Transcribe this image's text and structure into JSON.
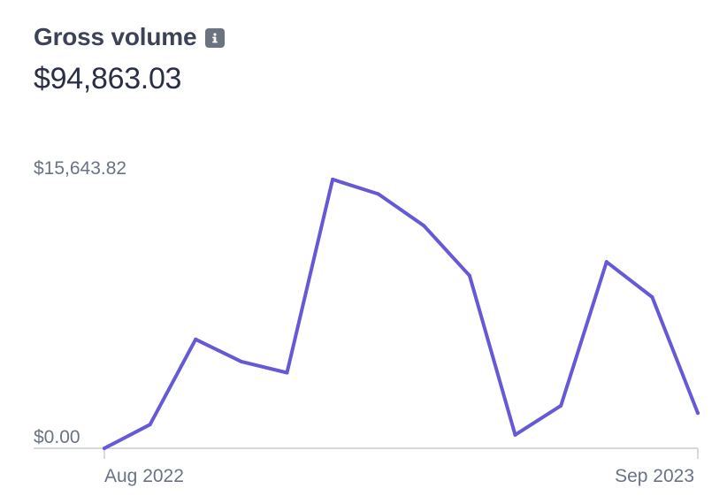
{
  "header": {
    "title": "Gross volume",
    "info_icon": "info-icon",
    "amount": "$94,863.03"
  },
  "colors": {
    "line": "#6559d8",
    "axis": "#c9ced6",
    "title": "#3c4257",
    "muted": "#6a7383"
  },
  "chart_data": {
    "type": "line",
    "x": [
      "2022-08",
      "2022-09",
      "2022-10",
      "2022-11",
      "2022-12",
      "2023-01",
      "2023-02",
      "2023-03",
      "2023-04",
      "2023-05",
      "2023-06",
      "2023-07",
      "2023-08",
      "2023-09"
    ],
    "series": [
      {
        "values": [
          0,
          1380,
          6340,
          5050,
          4400,
          15650,
          14800,
          12950,
          10050,
          780,
          2480,
          10850,
          8800,
          2050
        ]
      }
    ],
    "ylim": [
      0,
      15643.82
    ],
    "y_tick_labels": [
      "$15,643.82",
      "$0.00"
    ],
    "x_tick_labels": [
      "Aug 2022",
      "Sep 2023"
    ],
    "grid": false,
    "legend": "none"
  }
}
